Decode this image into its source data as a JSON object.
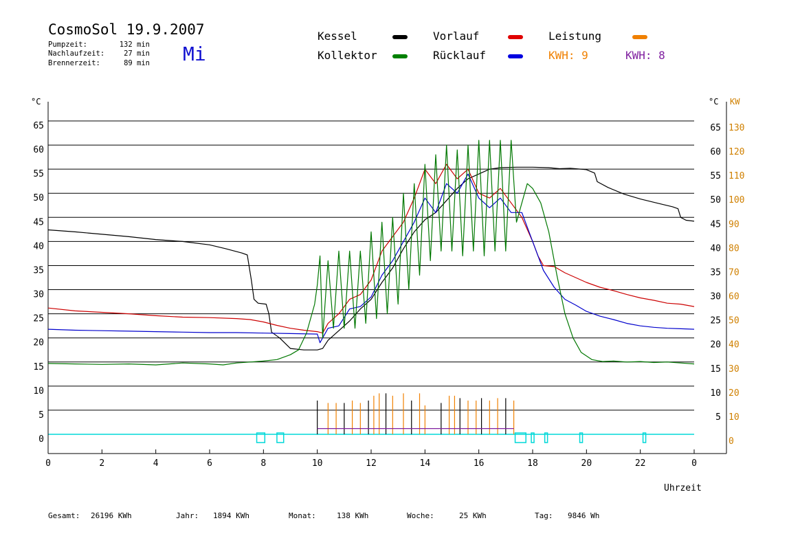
{
  "header": {
    "title": "CosmoSol 19.9.2007",
    "day": "Mi",
    "stats": [
      {
        "label": "Pumpzeit:",
        "value": "132 min"
      },
      {
        "label": "Nachlaufzeit:",
        "value": "27 min"
      },
      {
        "label": "Brennerzeit:",
        "value": "89 min"
      }
    ]
  },
  "legend": {
    "items": [
      {
        "label": "Kessel",
        "color": "#000000"
      },
      {
        "label": "Vorlauf",
        "color": "#e00000"
      },
      {
        "label": "Leistung",
        "color": "#f08000"
      },
      {
        "label": "Kollektor",
        "color": "#008000"
      },
      {
        "label": "Rücklauf",
        "color": "#0000e0"
      }
    ],
    "kwh": [
      {
        "label": "KWH: 9",
        "color": "#f08000"
      },
      {
        "label": "KWH: 8",
        "color": "#8020a0"
      }
    ]
  },
  "footer": [
    {
      "label": "Gesamt:",
      "value": "26196 KWh"
    },
    {
      "label": "Jahr:",
      "value": "1894 KWh"
    },
    {
      "label": "Monat:",
      "value": "138 KWh"
    },
    {
      "label": "Woche:",
      "value": "25 KWh"
    },
    {
      "label": "Tag:",
      "value": "9846 Wh"
    }
  ],
  "chart_data": {
    "type": "line",
    "xlabel": "Uhrzeit",
    "ylabel_left": "°C",
    "ylabel_right": [
      "°C",
      "KW"
    ],
    "xlim": [
      0,
      24
    ],
    "ylim": [
      -4,
      70
    ],
    "grid": true,
    "x_ticks": [
      "0",
      "2",
      "4",
      "6",
      "8",
      "10",
      "12",
      "14",
      "16",
      "18",
      "20",
      "22",
      "0"
    ],
    "y_ticks_left": [
      0,
      5,
      10,
      15,
      20,
      25,
      30,
      35,
      40,
      45,
      50,
      55,
      60,
      65
    ],
    "y_ticks_right_c": [
      5,
      10,
      15,
      20,
      25,
      30,
      35,
      40,
      45,
      50,
      55,
      60,
      65
    ],
    "y_ticks_right_kw": [
      0,
      10,
      20,
      30,
      40,
      50,
      60,
      70,
      80,
      90,
      100,
      110,
      120,
      130
    ],
    "colors": {
      "kessel": "#000000",
      "vorlauf": "#cc0000",
      "ruecklauf": "#0000cc",
      "kollektor": "#007700",
      "leistung": "#f08000",
      "leistung2": "#8020a0",
      "pumpe": "#00d8d8"
    },
    "series": [
      {
        "name": "Kessel",
        "color": "#000000",
        "points": [
          [
            0,
            42.4
          ],
          [
            1,
            42.0
          ],
          [
            2,
            41.5
          ],
          [
            3,
            41.0
          ],
          [
            4,
            40.4
          ],
          [
            5,
            40.0
          ],
          [
            6,
            39.3
          ],
          [
            6.6,
            38.5
          ],
          [
            7.2,
            37.6
          ],
          [
            7.4,
            37.2
          ],
          [
            7.55,
            32
          ],
          [
            7.65,
            28
          ],
          [
            7.8,
            27.2
          ],
          [
            8.1,
            27.0
          ],
          [
            8.2,
            25
          ],
          [
            8.3,
            21.2
          ],
          [
            8.6,
            20.0
          ],
          [
            9.0,
            17.8
          ],
          [
            9.5,
            17.5
          ],
          [
            10.0,
            17.5
          ],
          [
            10.2,
            17.8
          ],
          [
            10.4,
            19.5
          ],
          [
            10.8,
            21.5
          ],
          [
            11.2,
            23.5
          ],
          [
            11.6,
            26
          ],
          [
            12.0,
            28
          ],
          [
            12.4,
            31.5
          ],
          [
            12.8,
            34.5
          ],
          [
            13.2,
            38.5
          ],
          [
            13.6,
            42
          ],
          [
            14.0,
            44.5
          ],
          [
            14.4,
            46
          ],
          [
            14.8,
            48.5
          ],
          [
            15.2,
            51
          ],
          [
            15.6,
            53
          ],
          [
            16.0,
            54
          ],
          [
            16.4,
            55
          ],
          [
            16.8,
            55.3
          ],
          [
            17.4,
            55.4
          ],
          [
            18.0,
            55.4
          ],
          [
            18.6,
            55.3
          ],
          [
            19.0,
            55.1
          ],
          [
            19.4,
            55.2
          ],
          [
            20.0,
            54.9
          ],
          [
            20.3,
            54.2
          ],
          [
            20.4,
            52.4
          ],
          [
            20.8,
            51.2
          ],
          [
            21.4,
            49.8
          ],
          [
            22.0,
            48.8
          ],
          [
            22.6,
            48.0
          ],
          [
            23.2,
            47.2
          ],
          [
            23.4,
            46.8
          ],
          [
            23.5,
            45.0
          ],
          [
            23.7,
            44.4
          ],
          [
            24,
            44.2
          ]
        ]
      },
      {
        "name": "Vorlauf",
        "color": "#cc0000",
        "points": [
          [
            0,
            26.2
          ],
          [
            1,
            25.6
          ],
          [
            2,
            25.3
          ],
          [
            3,
            25.0
          ],
          [
            4,
            24.6
          ],
          [
            5,
            24.3
          ],
          [
            6,
            24.2
          ],
          [
            7,
            24.0
          ],
          [
            7.5,
            23.8
          ],
          [
            8.0,
            23.3
          ],
          [
            8.5,
            22.6
          ],
          [
            9.0,
            22.0
          ],
          [
            9.5,
            21.6
          ],
          [
            10.0,
            21.3
          ],
          [
            10.2,
            21.0
          ],
          [
            10.4,
            23
          ],
          [
            10.8,
            25
          ],
          [
            11.2,
            28
          ],
          [
            11.6,
            29
          ],
          [
            12.0,
            32
          ],
          [
            12.4,
            38
          ],
          [
            12.8,
            41
          ],
          [
            13.2,
            44
          ],
          [
            13.6,
            49
          ],
          [
            14.0,
            55
          ],
          [
            14.4,
            52
          ],
          [
            14.8,
            56
          ],
          [
            15.2,
            53
          ],
          [
            15.6,
            55
          ],
          [
            16.0,
            50
          ],
          [
            16.4,
            49
          ],
          [
            16.8,
            51
          ],
          [
            17.2,
            48
          ],
          [
            17.6,
            45
          ],
          [
            18.0,
            40
          ],
          [
            18.2,
            37
          ],
          [
            18.4,
            35
          ],
          [
            18.8,
            34.8
          ],
          [
            19.2,
            33.5
          ],
          [
            19.6,
            32.5
          ],
          [
            20.0,
            31.5
          ],
          [
            20.5,
            30.5
          ],
          [
            21.0,
            29.8
          ],
          [
            21.5,
            29.0
          ],
          [
            22.0,
            28.3
          ],
          [
            22.5,
            27.8
          ],
          [
            23.0,
            27.2
          ],
          [
            23.5,
            27.0
          ],
          [
            24,
            26.5
          ]
        ]
      },
      {
        "name": "Rücklauf",
        "color": "#0000cc",
        "points": [
          [
            0,
            21.8
          ],
          [
            1,
            21.6
          ],
          [
            2,
            21.5
          ],
          [
            3,
            21.4
          ],
          [
            4,
            21.3
          ],
          [
            5,
            21.2
          ],
          [
            6,
            21.1
          ],
          [
            7,
            21.1
          ],
          [
            8,
            21.0
          ],
          [
            9,
            20.9
          ],
          [
            10,
            20.8
          ],
          [
            10.1,
            19
          ],
          [
            10.4,
            22
          ],
          [
            10.8,
            22.5
          ],
          [
            11.2,
            26
          ],
          [
            11.6,
            26.5
          ],
          [
            12.0,
            28.5
          ],
          [
            12.4,
            33
          ],
          [
            12.8,
            36
          ],
          [
            13.2,
            40
          ],
          [
            13.6,
            44
          ],
          [
            14.0,
            49
          ],
          [
            14.4,
            46
          ],
          [
            14.8,
            52
          ],
          [
            15.2,
            50
          ],
          [
            15.6,
            54
          ],
          [
            16.0,
            49
          ],
          [
            16.4,
            47
          ],
          [
            16.8,
            49
          ],
          [
            17.2,
            46
          ],
          [
            17.6,
            46
          ],
          [
            18.0,
            40
          ],
          [
            18.4,
            34
          ],
          [
            18.8,
            30.5
          ],
          [
            19.2,
            28
          ],
          [
            19.6,
            26.8
          ],
          [
            20.0,
            25.5
          ],
          [
            20.5,
            24.5
          ],
          [
            21.0,
            23.8
          ],
          [
            21.5,
            23.0
          ],
          [
            22.0,
            22.5
          ],
          [
            22.5,
            22.2
          ],
          [
            23.0,
            22.0
          ],
          [
            23.5,
            21.9
          ],
          [
            24,
            21.8
          ]
        ]
      },
      {
        "name": "Kollektor",
        "color": "#007700",
        "points": [
          [
            0,
            14.7
          ],
          [
            1,
            14.6
          ],
          [
            2,
            14.5
          ],
          [
            3,
            14.6
          ],
          [
            4,
            14.4
          ],
          [
            5,
            14.8
          ],
          [
            6,
            14.6
          ],
          [
            6.5,
            14.4
          ],
          [
            7,
            14.8
          ],
          [
            7.5,
            15.0
          ],
          [
            8,
            15.2
          ],
          [
            8.5,
            15.5
          ],
          [
            9,
            16.5
          ],
          [
            9.3,
            17.5
          ],
          [
            9.6,
            21
          ],
          [
            9.9,
            27
          ],
          [
            10.0,
            31
          ],
          [
            10.1,
            37
          ],
          [
            10.2,
            20
          ],
          [
            10.4,
            36
          ],
          [
            10.6,
            22
          ],
          [
            10.8,
            38
          ],
          [
            11.0,
            22
          ],
          [
            11.2,
            38
          ],
          [
            11.4,
            22
          ],
          [
            11.6,
            38
          ],
          [
            11.8,
            23
          ],
          [
            12.0,
            42
          ],
          [
            12.2,
            24
          ],
          [
            12.4,
            44
          ],
          [
            12.6,
            25
          ],
          [
            12.8,
            45
          ],
          [
            13.0,
            27
          ],
          [
            13.2,
            50
          ],
          [
            13.4,
            30
          ],
          [
            13.6,
            52
          ],
          [
            13.8,
            33
          ],
          [
            14.0,
            56
          ],
          [
            14.2,
            36
          ],
          [
            14.4,
            58
          ],
          [
            14.6,
            38
          ],
          [
            14.8,
            60
          ],
          [
            15.0,
            38
          ],
          [
            15.2,
            59
          ],
          [
            15.4,
            37
          ],
          [
            15.6,
            60
          ],
          [
            15.8,
            38
          ],
          [
            16.0,
            61
          ],
          [
            16.2,
            37
          ],
          [
            16.4,
            61
          ],
          [
            16.6,
            38
          ],
          [
            16.8,
            61
          ],
          [
            17.0,
            38
          ],
          [
            17.2,
            61
          ],
          [
            17.4,
            44
          ],
          [
            17.6,
            48
          ],
          [
            17.8,
            52
          ],
          [
            18.0,
            51
          ],
          [
            18.3,
            48
          ],
          [
            18.6,
            42
          ],
          [
            18.9,
            33
          ],
          [
            19.2,
            25
          ],
          [
            19.5,
            20
          ],
          [
            19.8,
            17
          ],
          [
            20.2,
            15.5
          ],
          [
            20.6,
            15.1
          ],
          [
            21,
            15.2
          ],
          [
            21.5,
            15.0
          ],
          [
            22,
            15.1
          ],
          [
            22.5,
            14.9
          ],
          [
            23,
            15.0
          ],
          [
            23.5,
            14.8
          ],
          [
            24,
            14.6
          ]
        ]
      }
    ],
    "leistung_bars": [
      [
        10.0,
        14
      ],
      [
        10.4,
        13
      ],
      [
        10.7,
        13
      ],
      [
        11.0,
        13
      ],
      [
        11.3,
        14
      ],
      [
        11.6,
        13
      ],
      [
        11.9,
        14
      ],
      [
        12.1,
        16
      ],
      [
        12.3,
        17
      ],
      [
        12.55,
        17
      ],
      [
        12.8,
        16
      ],
      [
        13.2,
        17
      ],
      [
        13.5,
        14
      ],
      [
        13.8,
        17
      ],
      [
        14.0,
        12
      ],
      [
        14.6,
        13
      ],
      [
        14.9,
        16
      ],
      [
        15.1,
        16
      ],
      [
        15.3,
        15
      ],
      [
        15.6,
        14
      ],
      [
        15.9,
        14
      ],
      [
        16.1,
        15
      ],
      [
        16.4,
        14
      ],
      [
        16.7,
        15
      ],
      [
        17.0,
        15
      ],
      [
        17.3,
        14
      ]
    ],
    "pump_on": [
      [
        7.75,
        8.05
      ],
      [
        8.5,
        8.75
      ],
      [
        17.35,
        17.75
      ],
      [
        17.95,
        18.05
      ],
      [
        18.45,
        18.55
      ],
      [
        19.75,
        19.85
      ],
      [
        22.1,
        22.2
      ]
    ]
  }
}
